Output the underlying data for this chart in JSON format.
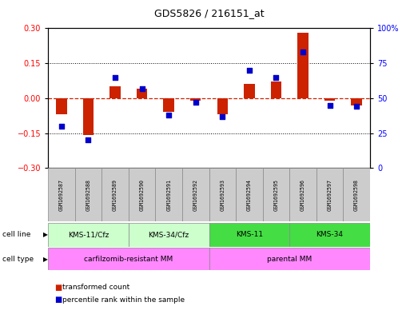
{
  "title": "GDS5826 / 216151_at",
  "samples": [
    "GSM1692587",
    "GSM1692588",
    "GSM1692589",
    "GSM1692590",
    "GSM1692591",
    "GSM1692592",
    "GSM1692593",
    "GSM1692594",
    "GSM1692595",
    "GSM1692596",
    "GSM1692597",
    "GSM1692598"
  ],
  "transformed_count": [
    -0.07,
    -0.16,
    0.05,
    0.04,
    -0.06,
    -0.01,
    -0.07,
    0.06,
    0.07,
    0.28,
    -0.01,
    -0.03
  ],
  "percentile_rank": [
    30,
    20,
    65,
    57,
    38,
    47,
    37,
    70,
    65,
    83,
    45,
    44
  ],
  "ylim_left": [
    -0.3,
    0.3
  ],
  "ylim_right": [
    0,
    100
  ],
  "yticks_left": [
    -0.3,
    -0.15,
    0.0,
    0.15,
    0.3
  ],
  "yticks_right": [
    0,
    25,
    50,
    75,
    100
  ],
  "hlines_dotted": [
    -0.15,
    0.15
  ],
  "cell_line_groups": [
    {
      "label": "KMS-11/Cfz",
      "start": 0,
      "end": 3,
      "color": "#ccffcc"
    },
    {
      "label": "KMS-34/Cfz",
      "start": 3,
      "end": 6,
      "color": "#ccffcc"
    },
    {
      "label": "KMS-11",
      "start": 6,
      "end": 9,
      "color": "#44dd44"
    },
    {
      "label": "KMS-34",
      "start": 9,
      "end": 12,
      "color": "#44dd44"
    }
  ],
  "cell_type_groups": [
    {
      "label": "carfilzomib-resistant MM",
      "start": 0,
      "end": 6,
      "color": "#ff88ff"
    },
    {
      "label": "parental MM",
      "start": 6,
      "end": 12,
      "color": "#ff88ff"
    }
  ],
  "bar_color": "#cc2200",
  "dot_color": "#0000cc",
  "zero_line_color": "#cc2200",
  "bg_color": "#ffffff",
  "sample_box_color": "#cccccc",
  "cell_line_label": "cell line",
  "cell_type_label": "cell type",
  "legend_red": "transformed count",
  "legend_blue": "percentile rank within the sample"
}
